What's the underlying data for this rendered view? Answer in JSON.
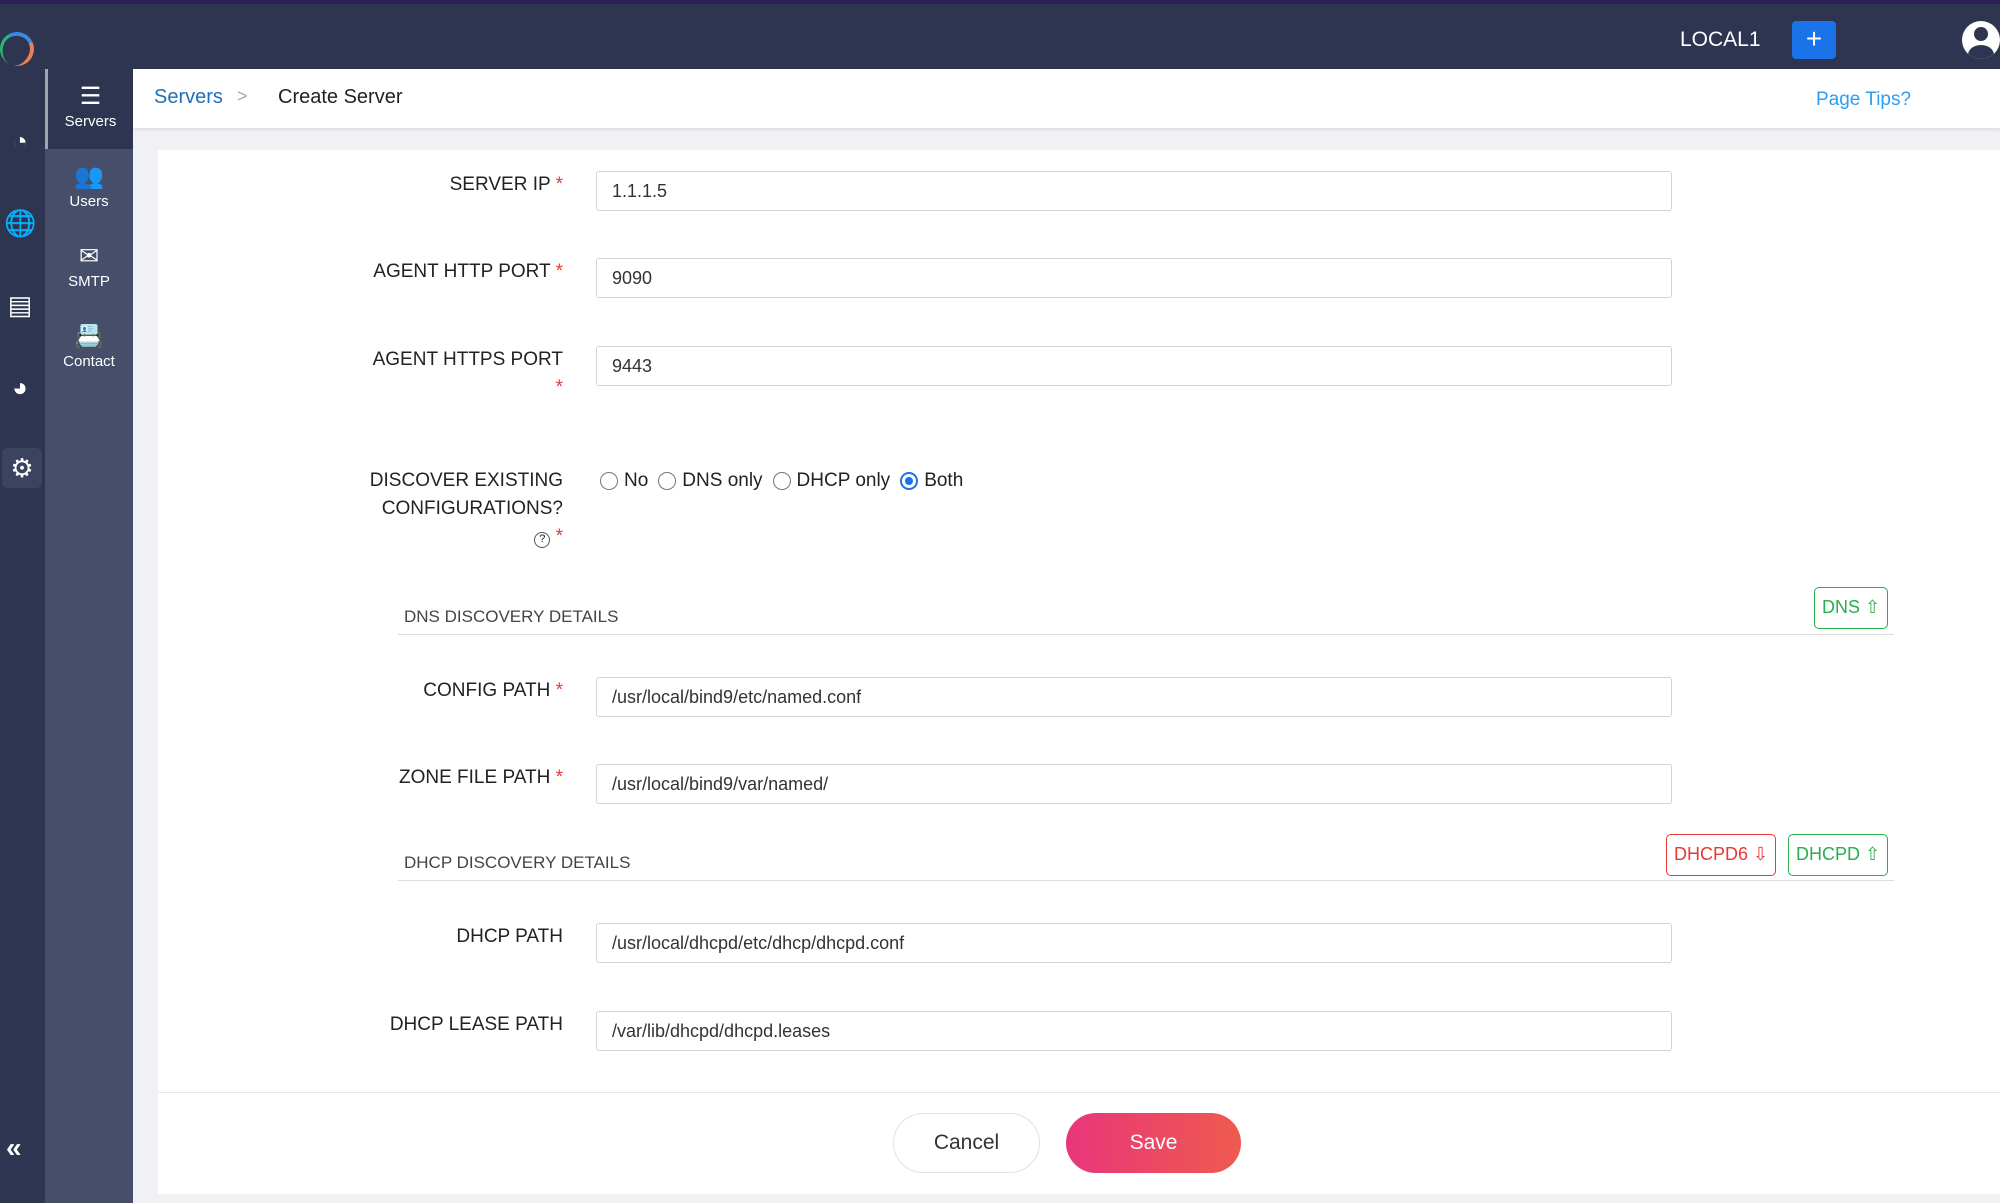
{
  "header": {
    "environment": "LOCAL1",
    "add_label": "+"
  },
  "rail": {
    "icons": [
      "dashboard-icon",
      "dns-globe-icon",
      "network-icon",
      "chart-pie-icon",
      "settings-wrench-icon"
    ],
    "collapse": "«"
  },
  "subnav": {
    "items": [
      {
        "label": "Servers",
        "icon": "☰"
      },
      {
        "label": "Users",
        "icon": "👥"
      },
      {
        "label": "SMTP",
        "icon": "✉"
      },
      {
        "label": "Contact",
        "icon": "📇"
      }
    ]
  },
  "breadcrumb": {
    "parent": "Servers",
    "separator": ">",
    "current": "Create Server",
    "tips": "Page Tips?"
  },
  "form": {
    "server_ip": {
      "label": "SERVER IP",
      "value": "1.1.1.5"
    },
    "http_port": {
      "label": "AGENT HTTP PORT",
      "value": "9090"
    },
    "https_port": {
      "label": "AGENT HTTPS PORT",
      "value": "9443"
    },
    "discover": {
      "label1": "DISCOVER EXISTING",
      "label2": "CONFIGURATIONS?",
      "help": "?",
      "options": [
        "No",
        "DNS only",
        "DHCP only",
        "Both"
      ],
      "selected": "Both"
    },
    "dns_section": {
      "title": "DNS DISCOVERY DETAILS",
      "button": "DNS"
    },
    "config_path": {
      "label": "CONFIG PATH",
      "value": "/usr/local/bind9/etc/named.conf"
    },
    "zone_path": {
      "label": "ZONE FILE PATH",
      "value": "/usr/local/bind9/var/named/"
    },
    "dhcp_section": {
      "title": "DHCP DISCOVERY DETAILS",
      "button6": "DHCPD6",
      "button": "DHCPD"
    },
    "dhcp_path": {
      "label": "DHCP PATH",
      "value": "/usr/local/dhcpd/etc/dhcp/dhcpd.conf"
    },
    "lease_path": {
      "label": "DHCP LEASE PATH",
      "value": "/var/lib/dhcpd/dhcpd.leases"
    },
    "required": "*"
  },
  "actions": {
    "cancel": "Cancel",
    "save": "Save"
  },
  "colors": {
    "accent": "#1a73e8",
    "green": "#27ae4f",
    "red": "#e53935",
    "topbar": "#2e3550"
  }
}
